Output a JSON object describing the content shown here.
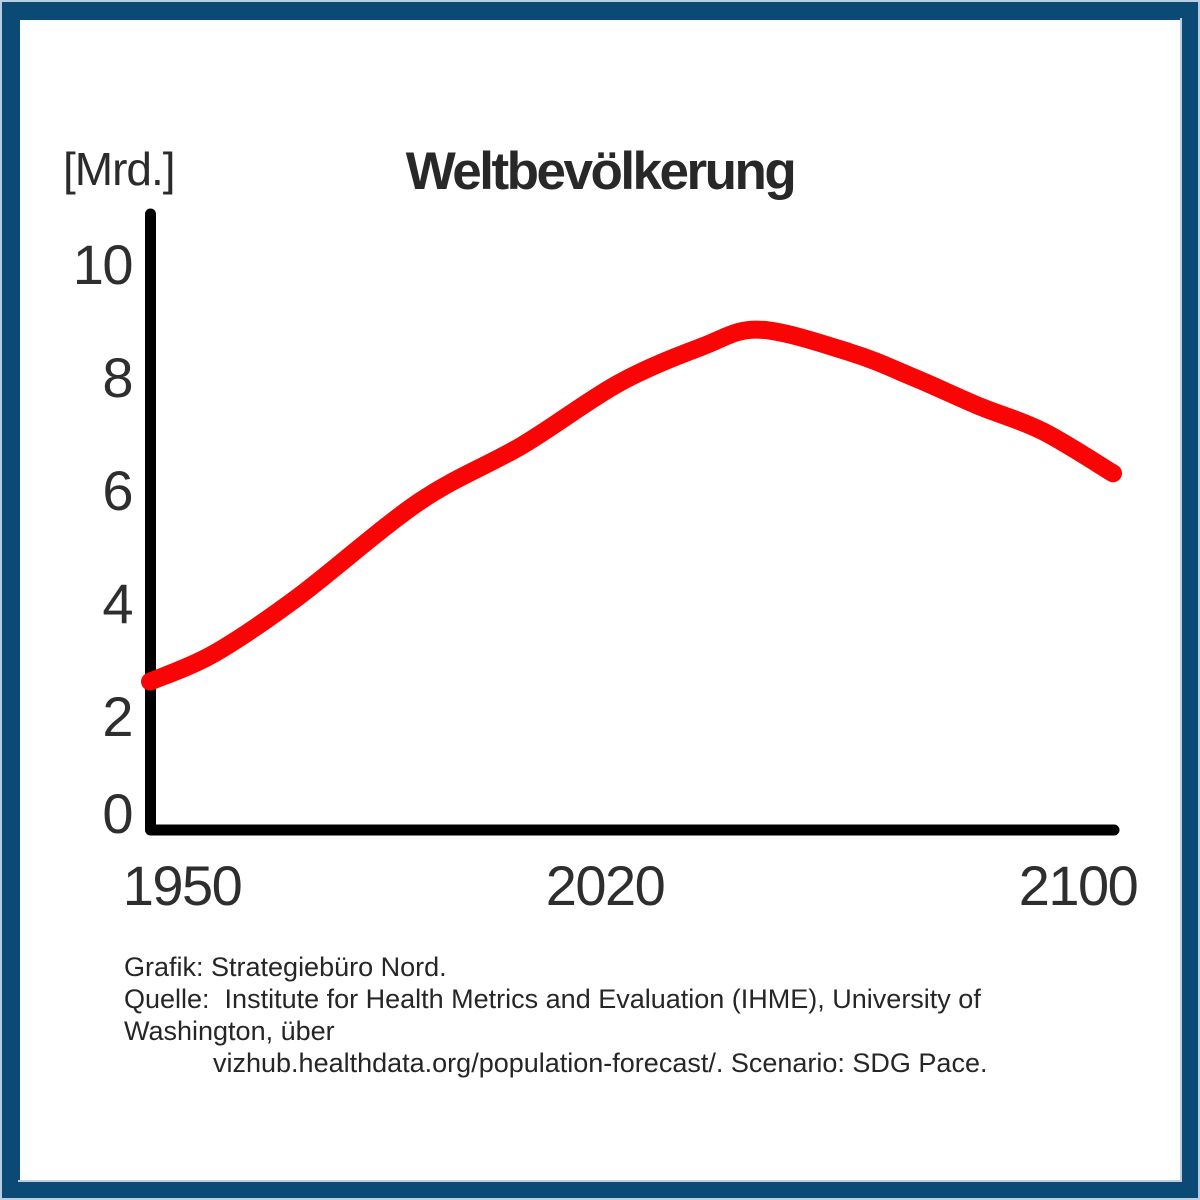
{
  "frame": {
    "border_color": "#0a4a75",
    "edge_color": "#b8cfdf"
  },
  "chart": {
    "title": "Weltbevölkerung",
    "unit_label": "[Mrd.]",
    "line_color": "#fa0505",
    "axis_color": "#000000",
    "y_axis": {
      "ticks": [
        "10",
        "8",
        "6",
        "4",
        "2",
        "0"
      ]
    },
    "x_axis": {
      "ticks": [
        "1950",
        "2020",
        "2100"
      ]
    }
  },
  "chart_data": {
    "type": "line",
    "title": "Weltbevölkerung",
    "ylabel": "[Mrd.]",
    "x": [
      1950,
      1960,
      1973,
      1992,
      2008,
      2023,
      2036,
      2045,
      2059,
      2069,
      2079,
      2089,
      2100
    ],
    "values": [
      2.6,
      3.1,
      4.1,
      5.8,
      6.8,
      7.9,
      8.55,
      8.85,
      8.45,
      8.0,
      7.5,
      7.05,
      6.3
    ],
    "xlim": [
      1950,
      2100
    ],
    "ylim": [
      0,
      10
    ],
    "x_ticks": [
      1950,
      2020,
      2100
    ],
    "y_ticks": [
      0,
      2,
      4,
      6,
      8,
      10
    ],
    "grid": false,
    "legend": false,
    "series_name": "Weltbevölkerung"
  },
  "footer": {
    "lines": [
      "Grafik: Strategiebüro Nord.",
      "Quelle:  Institute for Health Metrics and Evaluation (IHME), University of Washington, über",
      "vizhub.healthdata.org/population-forecast/. Scenario: SDG Pace."
    ]
  }
}
